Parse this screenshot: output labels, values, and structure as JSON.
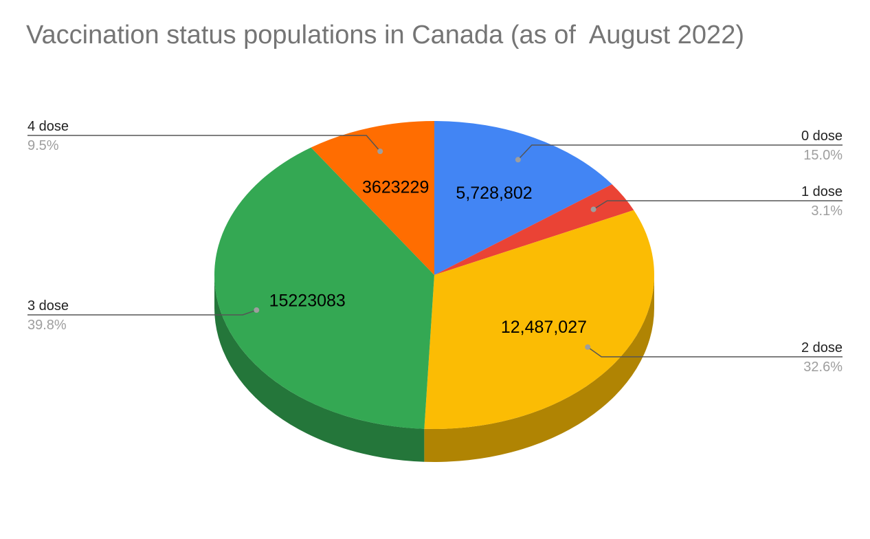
{
  "chart_data": {
    "type": "pie",
    "title": "Vaccination status populations in Canada (as of  August 2022)",
    "three_d": true,
    "legend_placement": "labeled leader lines",
    "slices": [
      {
        "name": "0 dose",
        "value": 5728802,
        "value_label": "5,728,802",
        "percent_label": "15.0%",
        "color": "#4285f4"
      },
      {
        "name": "1 dose",
        "value": 1187000,
        "value_label": "",
        "percent_label": "3.1%",
        "color": "#ea4335"
      },
      {
        "name": "2 dose",
        "value": 12487027,
        "value_label": "12,487,027",
        "percent_label": "32.6%",
        "color": "#fbbc04"
      },
      {
        "name": "3 dose",
        "value": 15223083,
        "value_label": "15223083",
        "percent_label": "39.8%",
        "color": "#34a853"
      },
      {
        "name": "4 dose",
        "value": 3623229,
        "value_label": "3623229",
        "percent_label": "9.5%",
        "color": "#ff6d01"
      }
    ]
  }
}
